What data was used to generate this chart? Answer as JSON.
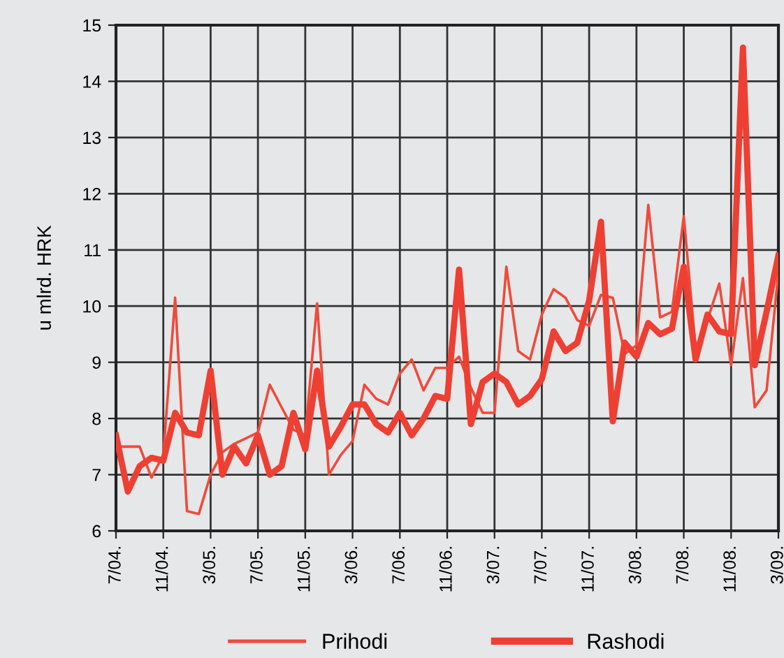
{
  "chart_data": {
    "type": "line",
    "ylabel": "u mlrd. HRK",
    "ylim": [
      6,
      15
    ],
    "yticks": [
      6,
      7,
      8,
      9,
      10,
      11,
      12,
      13,
      14,
      15
    ],
    "grid": true,
    "legend": "bottom",
    "marker": "none",
    "categories": [
      "7/04.",
      null,
      null,
      null,
      "11/04.",
      null,
      null,
      null,
      "3/05.",
      null,
      null,
      null,
      "7/05.",
      null,
      null,
      null,
      "11/05.",
      null,
      null,
      null,
      "3/06.",
      null,
      null,
      null,
      "7/06.",
      null,
      null,
      null,
      "11/06.",
      null,
      null,
      null,
      "3/07.",
      null,
      null,
      null,
      "7/07.",
      null,
      null,
      null,
      "11/07.",
      null,
      null,
      null,
      "3/08.",
      null,
      null,
      null,
      "7/08.",
      null,
      null,
      null,
      "11/08.",
      null,
      null,
      null,
      "3/09."
    ],
    "series": [
      {
        "name": "Prihodi",
        "color": "#f04a3a",
        "values": [
          7.5,
          7.5,
          7.5,
          6.95,
          7.35,
          10.15,
          6.35,
          6.3,
          7.0,
          7.4,
          7.55,
          7.65,
          7.75,
          8.6,
          8.2,
          7.8,
          7.7,
          10.05,
          7.0,
          7.35,
          7.6,
          8.6,
          8.35,
          8.25,
          8.8,
          9.05,
          8.5,
          8.9,
          8.9,
          9.1,
          8.55,
          8.1,
          8.1,
          10.7,
          9.2,
          9.05,
          9.85,
          10.3,
          10.15,
          9.75,
          9.65,
          10.2,
          10.15,
          9.15,
          9.3,
          11.8,
          9.8,
          9.9,
          11.6,
          9.25,
          9.75,
          10.4,
          8.95,
          10.5,
          8.2,
          8.5,
          10.6
        ]
      },
      {
        "name": "Rashodi",
        "color": "#ee3f33",
        "values": [
          7.7,
          6.7,
          7.15,
          7.3,
          7.25,
          8.1,
          7.75,
          7.7,
          8.85,
          7.0,
          7.5,
          7.2,
          7.7,
          7.0,
          7.15,
          8.1,
          7.45,
          8.85,
          7.5,
          7.85,
          8.25,
          8.25,
          7.9,
          7.75,
          8.1,
          7.7,
          8.0,
          8.4,
          8.35,
          10.65,
          7.9,
          8.65,
          8.8,
          8.65,
          8.25,
          8.4,
          8.7,
          9.55,
          9.2,
          9.35,
          10.1,
          11.5,
          7.95,
          9.35,
          9.1,
          9.7,
          9.5,
          9.6,
          10.7,
          9.05,
          9.85,
          9.55,
          9.5,
          14.6,
          8.95,
          9.9,
          10.9
        ]
      }
    ]
  }
}
